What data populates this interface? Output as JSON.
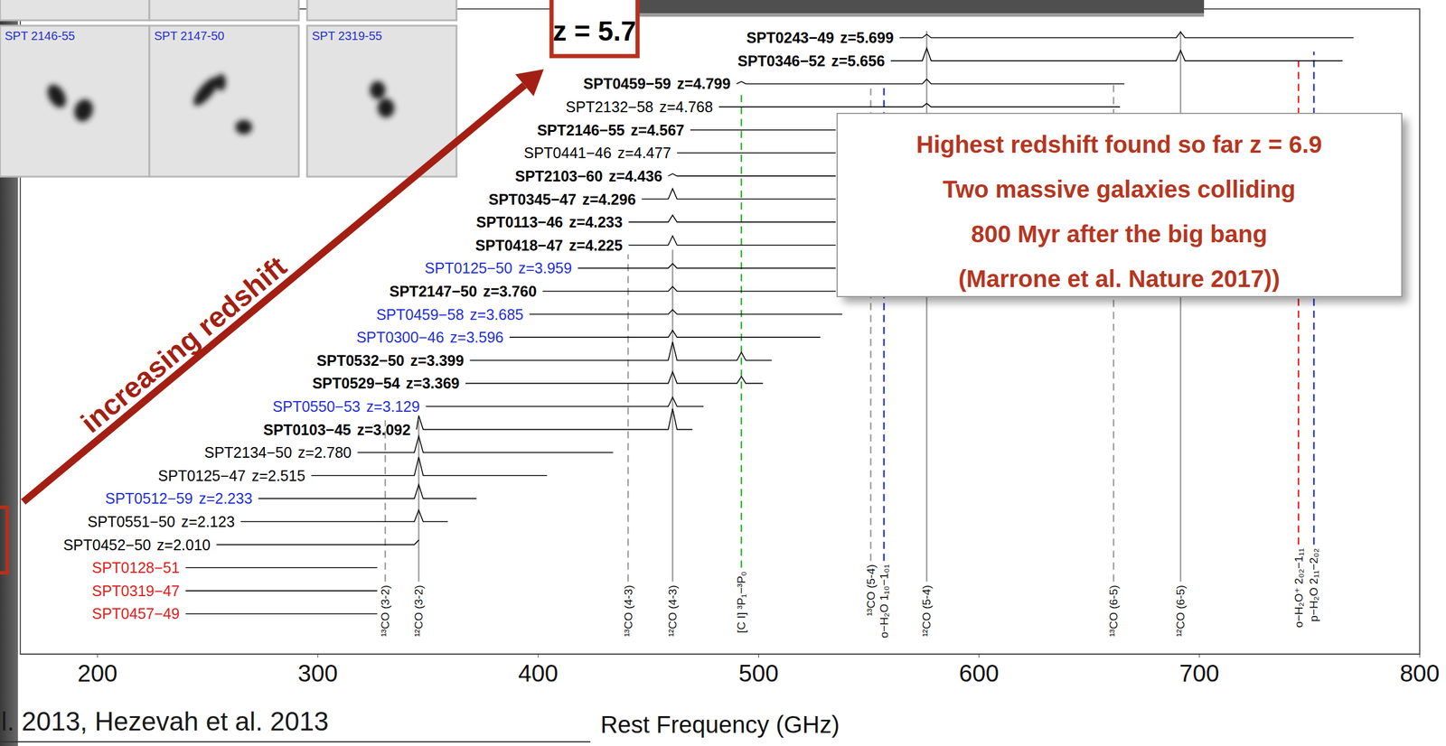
{
  "chart_data": {
    "type": "line",
    "xlabel": "Rest Frequency (GHz)",
    "xlim": [
      165,
      800
    ],
    "xticks": [
      200,
      300,
      400,
      500,
      600,
      700,
      800
    ],
    "ylim": [
      -1.75,
      26.25
    ],
    "tick_labels": "x",
    "grid": false,
    "series": [
      {
        "name": "SPT0243−49",
        "z_label": "z=5.699",
        "color": "#000000",
        "label_color": "#000000",
        "bold": true,
        "x": [
          564,
          574.3,
          576.3,
          578.3,
          689.5,
          691.5,
          693.5,
          770
        ],
        "values": [
          25,
          25,
          25.15,
          25,
          25,
          25.25,
          25,
          25
        ]
      },
      {
        "name": "SPT0346−52",
        "z_label": "z=5.656",
        "color": "#000000",
        "label_color": "#000000",
        "bold": true,
        "x": [
          560,
          574.3,
          576.3,
          578.3,
          689.5,
          691.5,
          693.5,
          765
        ],
        "values": [
          24,
          24,
          24.55,
          24,
          24,
          24.45,
          24,
          24
        ]
      },
      {
        "name": "SPT0459−59",
        "z_label": "z=4.799",
        "color": "#000000",
        "label_color": "#000000",
        "bold": true,
        "x": [
          490,
          492.2,
          494.2,
          574.3,
          576.3,
          578.3,
          666
        ],
        "values": [
          23,
          23.1,
          23,
          23,
          23.2,
          23,
          23
        ]
      },
      {
        "name": "SPT2132−58",
        "z_label": "z=4.768",
        "color": "#000000",
        "label_color": "#000000",
        "bold": false,
        "x": [
          482,
          574.3,
          576.3,
          578.3,
          664
        ],
        "values": [
          22,
          22,
          22.15,
          22,
          22
        ]
      },
      {
        "name": "SPT2146−55",
        "z_label": "z=4.567",
        "color": "#000000",
        "label_color": "#000000",
        "bold": true,
        "x": [
          469,
          535
        ],
        "values": [
          21,
          21
        ]
      },
      {
        "name": "SPT0441−46",
        "z_label": "z=4.477",
        "color": "#000000",
        "label_color": "#000000",
        "bold": false,
        "x": [
          463,
          535
        ],
        "values": [
          20,
          20
        ]
      },
      {
        "name": "SPT2103−60",
        "z_label": "z=4.436",
        "color": "#000000",
        "label_color": "#000000",
        "bold": true,
        "x": [
          459,
          461,
          463,
          535
        ],
        "values": [
          19,
          19.1,
          19,
          19
        ]
      },
      {
        "name": "SPT0345−47",
        "z_label": "z=4.296",
        "color": "#000000",
        "label_color": "#000000",
        "bold": true,
        "x": [
          447,
          459,
          461,
          463,
          535
        ],
        "values": [
          18,
          18,
          18.45,
          18,
          18
        ]
      },
      {
        "name": "SPT0113−46",
        "z_label": "z=4.233",
        "color": "#000000",
        "label_color": "#000000",
        "bold": true,
        "x": [
          441,
          459,
          461,
          463,
          535
        ],
        "values": [
          17,
          17,
          17.3,
          17,
          17
        ]
      },
      {
        "name": "SPT0418−47",
        "z_label": "z=4.225",
        "color": "#000000",
        "label_color": "#000000",
        "bold": true,
        "x": [
          441,
          459,
          461,
          463,
          535
        ],
        "values": [
          16,
          16,
          16.4,
          16,
          16
        ]
      },
      {
        "name": "SPT0125−50",
        "z_label": "z=3.959",
        "color": "#000000",
        "label_color": "#1f2fd8",
        "bold": false,
        "x": [
          418,
          459,
          461,
          463,
          535
        ],
        "values": [
          15,
          15,
          15.2,
          15,
          15
        ]
      },
      {
        "name": "SPT2147−50",
        "z_label": "z=3.760",
        "color": "#000000",
        "label_color": "#000000",
        "bold": true,
        "x": [
          402,
          459,
          461,
          463,
          535
        ],
        "values": [
          14,
          14,
          14.2,
          14,
          14
        ]
      },
      {
        "name": "SPT0459−58",
        "z_label": "z=3.685",
        "color": "#000000",
        "label_color": "#1f2fd8",
        "bold": false,
        "x": [
          396,
          459,
          461,
          463,
          538
        ],
        "values": [
          13,
          13,
          13.2,
          13,
          13
        ]
      },
      {
        "name": "SPT0300−46",
        "z_label": "z=3.596",
        "color": "#000000",
        "label_color": "#1f2fd8",
        "bold": false,
        "x": [
          387,
          459,
          461,
          463,
          528
        ],
        "values": [
          12,
          12,
          12.3,
          12,
          12
        ]
      },
      {
        "name": "SPT0532−50",
        "z_label": "z=3.399",
        "color": "#000000",
        "label_color": "#000000",
        "bold": true,
        "x": [
          369,
          459,
          461,
          463,
          490.2,
          492.2,
          494.2,
          506
        ],
        "values": [
          11,
          11,
          11.8,
          11,
          11,
          11.35,
          11,
          11
        ]
      },
      {
        "name": "SPT0529−54",
        "z_label": "z=3.369",
        "color": "#000000",
        "label_color": "#000000",
        "bold": true,
        "x": [
          367,
          459,
          461,
          463,
          490.2,
          492.2,
          494.2,
          502
        ],
        "values": [
          10,
          10,
          10.5,
          10,
          10,
          10.3,
          10,
          10
        ]
      },
      {
        "name": "SPT0550−53",
        "z_label": "z=3.129",
        "color": "#000000",
        "label_color": "#1f2fd8",
        "bold": false,
        "x": [
          349,
          459,
          461,
          463,
          475
        ],
        "values": [
          9,
          9,
          9.4,
          9,
          9
        ]
      },
      {
        "name": "SPT0103−45",
        "z_label": "z=3.092",
        "color": "#000000",
        "label_color": "#000000",
        "bold": true,
        "x": [
          344.8,
          345.8,
          347.8,
          459,
          461,
          463,
          470
        ],
        "values": [
          8,
          8.6,
          8,
          8,
          8.9,
          8,
          8
        ]
      },
      {
        "name": "SPT2134−50",
        "z_label": "z=2.780",
        "color": "#000000",
        "label_color": "#000000",
        "bold": false,
        "x": [
          318,
          343.8,
          345.8,
          347.8,
          434
        ],
        "values": [
          7,
          7,
          7.7,
          7,
          7
        ]
      },
      {
        "name": "SPT0125−47",
        "z_label": "z=2.515",
        "color": "#000000",
        "label_color": "#000000",
        "bold": false,
        "x": [
          297,
          343.8,
          345.8,
          347.8,
          404
        ],
        "values": [
          6,
          6,
          6.8,
          6,
          6
        ]
      },
      {
        "name": "SPT0512−59",
        "z_label": "z=2.233",
        "color": "#000000",
        "label_color": "#1f2fd8",
        "bold": false,
        "x": [
          273,
          343.8,
          345.8,
          347.8,
          372
        ],
        "values": [
          5,
          5,
          5.6,
          5,
          5
        ]
      },
      {
        "name": "SPT0551−50",
        "z_label": "z=2.123",
        "color": "#000000",
        "label_color": "#000000",
        "bold": false,
        "x": [
          265,
          343.8,
          345.8,
          347.8,
          359
        ],
        "values": [
          4,
          4,
          4.5,
          4,
          4
        ]
      },
      {
        "name": "SPT0452−50",
        "z_label": "z=2.010",
        "color": "#000000",
        "label_color": "#000000",
        "bold": false,
        "x": [
          254,
          343.8,
          345.8
        ],
        "values": [
          3,
          3,
          3.2
        ]
      },
      {
        "name": "SPT0128−51",
        "color": "#000000",
        "label_color": "#e0201b",
        "bold": false,
        "x": [
          240,
          327
        ],
        "values": [
          2,
          2
        ]
      },
      {
        "name": "SPT0319−47",
        "color": "#000000",
        "label_color": "#e0201b",
        "bold": false,
        "x": [
          240,
          327
        ],
        "values": [
          1,
          1
        ]
      },
      {
        "name": "SPT0457−49",
        "color": "#000000",
        "label_color": "#e0201b",
        "bold": false,
        "x": [
          240,
          327
        ],
        "values": [
          0,
          0
        ]
      }
    ],
    "reference_lines": [
      {
        "name": "¹³CO (3-2)",
        "x": 330.6,
        "y_range": [
          1.4,
          8.4
        ],
        "color": "#a0a0a0",
        "line_style": "dashed"
      },
      {
        "name": "¹²CO (3-2)",
        "x": 345.8,
        "y_range": [
          1.4,
          8.4
        ],
        "color": "#a0a0a0",
        "line_style": "solid"
      },
      {
        "name": "¹³CO (4-3)",
        "x": 440.8,
        "y_range": [
          1.4,
          15.6
        ],
        "color": "#a0a0a0",
        "line_style": "dashed"
      },
      {
        "name": "¹²CO (4-3)",
        "x": 461,
        "y_range": [
          1.4,
          15.8
        ],
        "color": "#a0a0a0",
        "line_style": "solid"
      },
      {
        "name": "[C I] ³P₁−³P₀",
        "x": 492.2,
        "y_range": [
          2.0,
          22.6
        ],
        "color": "#2fb62f",
        "line_style": "dashed"
      },
      {
        "name": "¹³CO (5-4)",
        "x": 550.9,
        "y_range": [
          2.3,
          22.8
        ],
        "color": "#a0a0a0",
        "line_style": "dashed"
      },
      {
        "name": "o−H₂O 1₁₀−1₀₁",
        "x": 556.9,
        "y_range": [
          2.3,
          23.0
        ],
        "color": "#1f2fd8",
        "line_style": "dashed"
      },
      {
        "name": "¹²CO (5-4)",
        "x": 576.3,
        "y_range": [
          1.4,
          25.3
        ],
        "color": "#a0a0a0",
        "line_style": "solid"
      },
      {
        "name": "¹³CO (6-5)",
        "x": 661.1,
        "y_range": [
          1.4,
          23.0
        ],
        "color": "#a0a0a0",
        "line_style": "dashed"
      },
      {
        "name": "¹²CO (6-5)",
        "x": 691.5,
        "y_range": [
          1.4,
          25.3
        ],
        "color": "#a0a0a0",
        "line_style": "solid"
      },
      {
        "name": "o−H₂O⁺ 2₀₂−1₁₁",
        "x": 745,
        "y_range": [
          3.0,
          24.0
        ],
        "color": "#e0201b",
        "line_style": "dashed"
      },
      {
        "name": "p−H₂O 2₁₁−2₀₂",
        "x": 752,
        "y_range": [
          3.0,
          24.4
        ],
        "color": "#1f2fd8",
        "line_style": "dashed"
      }
    ]
  },
  "overlay": {
    "thumbnails": [
      "SPT 2146-55",
      "SPT 2147-50",
      "SPT 2319-55"
    ],
    "redshift_box": "z = 5.7",
    "arrow_label": "increasing redshift",
    "callout": [
      "Highest redshift found so far z = 6.9",
      "Two massive galaxies colliding",
      "800 Myr after the big bang",
      "(Marrone et al. Nature 2017))"
    ],
    "citation": "l. 2013, Hezevah et al. 2013"
  }
}
